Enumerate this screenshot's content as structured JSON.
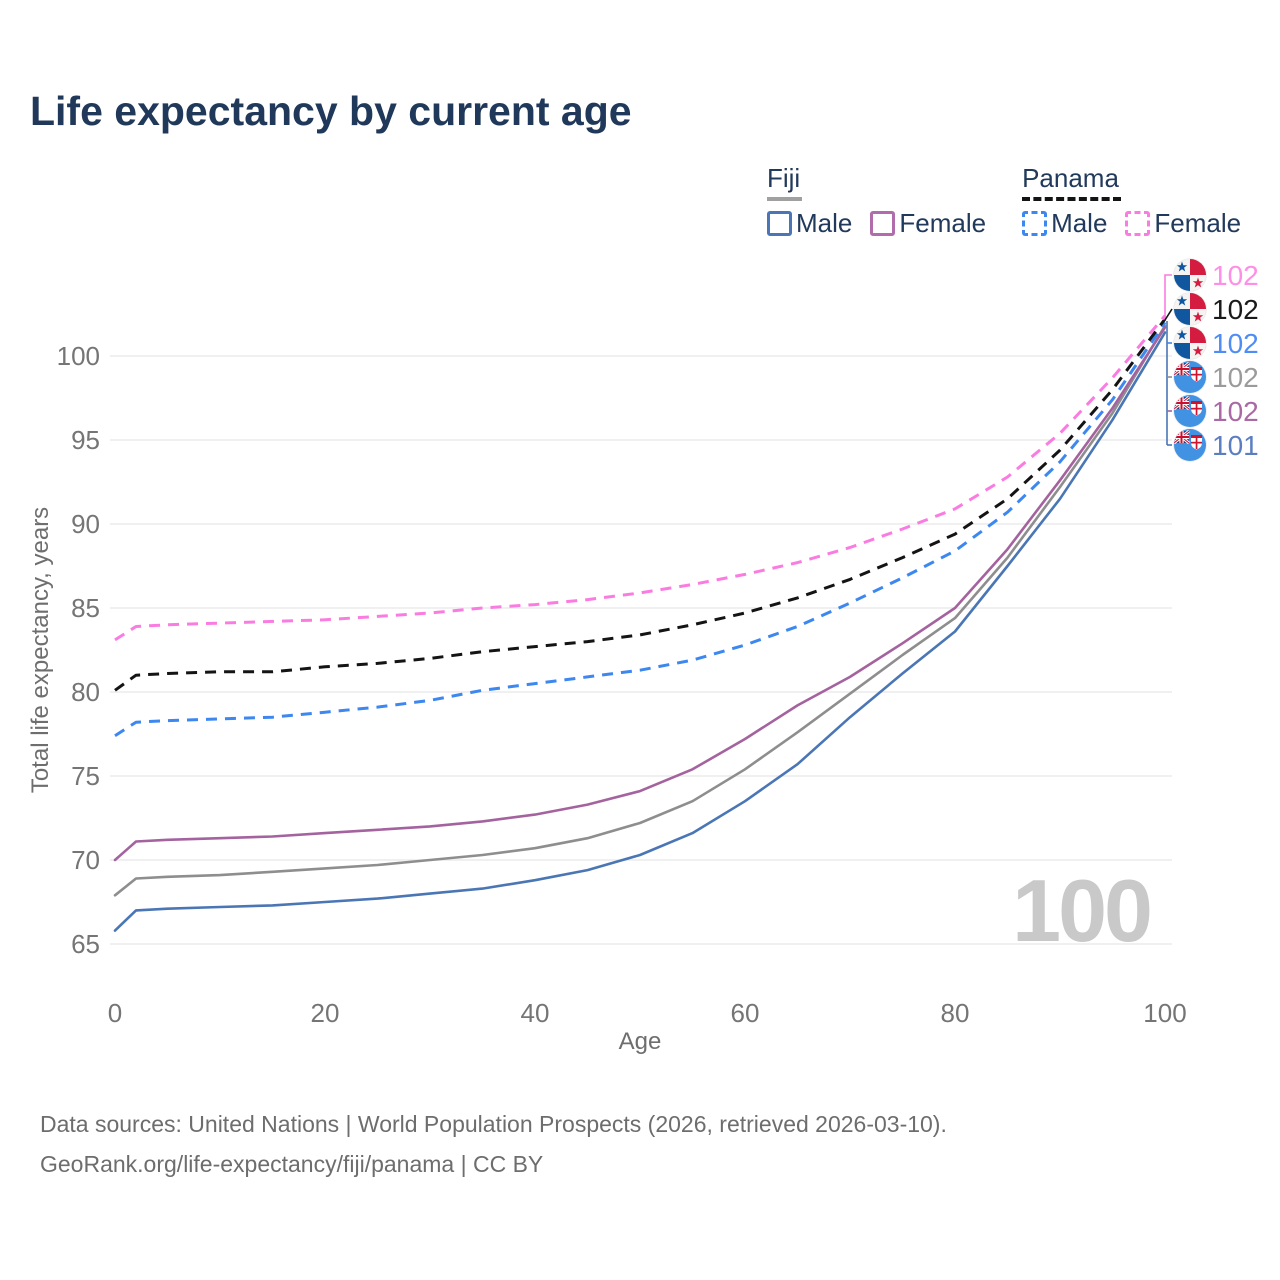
{
  "title": "Life expectancy by current age",
  "watermark": "100",
  "legend": {
    "groups": [
      {
        "name": "Fiji",
        "line_style": "solid",
        "underline_color": "#a0a0a0",
        "items": [
          {
            "label": "Male",
            "color": "#4a76b5"
          },
          {
            "label": "Female",
            "color": "#b06cab"
          }
        ]
      },
      {
        "name": "Panama",
        "line_style": "dashed",
        "underline_color": "#141414",
        "items": [
          {
            "label": "Male",
            "color": "#3c87f0"
          },
          {
            "label": "Female",
            "color": "#fb7ce1"
          }
        ]
      }
    ]
  },
  "footer": {
    "line1": "Data sources: United Nations | World Population Prospects (2026, retrieved 2026-03-10).",
    "line2": "GeoRank.org/life-expectancy/fiji/panama | CC BY"
  },
  "chart_data": {
    "type": "line",
    "title": "Life expectancy by current age",
    "xlabel": "Age",
    "ylabel": "Total life expectancy, years",
    "xlim": [
      0,
      100
    ],
    "ylim": [
      65,
      103
    ],
    "xticks": [
      0,
      20,
      40,
      60,
      80,
      100
    ],
    "yticks": [
      65,
      70,
      75,
      80,
      85,
      90,
      95,
      100
    ],
    "grid": "horizontal",
    "colors": {
      "title_text": "#20395a",
      "tick_text": "#757575",
      "axis_title_text": "#6e6e6e",
      "gridline": "#ebebeb",
      "watermark_text": "#c9c9c9"
    },
    "x": [
      0,
      2,
      5,
      10,
      15,
      20,
      25,
      30,
      35,
      40,
      45,
      50,
      55,
      60,
      65,
      70,
      75,
      80,
      85,
      90,
      95,
      100
    ],
    "series": [
      {
        "id": "fiji-male",
        "name": "Fiji Male",
        "color": "#4a76b5",
        "dash": "solid",
        "values": [
          65.8,
          67.0,
          67.1,
          67.2,
          67.3,
          67.5,
          67.7,
          68.0,
          68.3,
          68.8,
          69.4,
          70.3,
          71.6,
          73.5,
          75.7,
          78.5,
          81.1,
          83.6,
          87.5,
          91.5,
          96.2,
          101.4
        ]
      },
      {
        "id": "fiji-both",
        "name": "Fiji Both sexes",
        "color": "#8e8e8e",
        "dash": "solid",
        "values": [
          67.9,
          68.9,
          69.0,
          69.1,
          69.3,
          69.5,
          69.7,
          70.0,
          70.3,
          70.7,
          71.3,
          72.2,
          73.5,
          75.4,
          77.6,
          79.9,
          82.2,
          84.4,
          88.0,
          92.2,
          96.6,
          101.8
        ]
      },
      {
        "id": "fiji-female",
        "name": "Fiji Female",
        "color": "#a4639f",
        "dash": "solid",
        "values": [
          70.0,
          71.1,
          71.2,
          71.3,
          71.4,
          71.6,
          71.8,
          72.0,
          72.3,
          72.7,
          73.3,
          74.1,
          75.4,
          77.2,
          79.2,
          80.9,
          82.9,
          85.0,
          88.5,
          92.6,
          96.9,
          101.7
        ]
      },
      {
        "id": "panama-male",
        "name": "Panama Male",
        "color": "#3c87f0",
        "dash": "dashed",
        "values": [
          77.4,
          78.2,
          78.3,
          78.4,
          78.5,
          78.8,
          79.1,
          79.5,
          80.1,
          80.5,
          80.9,
          81.3,
          81.9,
          82.8,
          83.9,
          85.3,
          86.8,
          88.4,
          90.7,
          93.7,
          97.4,
          102.0
        ]
      },
      {
        "id": "panama-both",
        "name": "Panama Both sexes",
        "color": "#141414",
        "dash": "dashed",
        "values": [
          80.1,
          81.0,
          81.1,
          81.2,
          81.2,
          81.5,
          81.7,
          82.0,
          82.4,
          82.7,
          83.0,
          83.4,
          84.0,
          84.7,
          85.6,
          86.7,
          88.0,
          89.4,
          91.5,
          94.4,
          98.0,
          102.2
        ]
      },
      {
        "id": "panama-female",
        "name": "Panama Female",
        "color": "#fb7ce1",
        "dash": "dashed",
        "values": [
          83.1,
          83.9,
          84.0,
          84.1,
          84.2,
          84.3,
          84.5,
          84.7,
          85.0,
          85.2,
          85.5,
          85.9,
          86.4,
          87.0,
          87.7,
          88.6,
          89.7,
          90.9,
          92.8,
          95.4,
          98.7,
          102.4
        ]
      }
    ],
    "end_labels": [
      {
        "flag": "panama",
        "series": "panama-female",
        "value": "102",
        "label_color": "#ff8ee6",
        "line_color": "#fb7ce1"
      },
      {
        "flag": "panama",
        "series": "panama-both",
        "value": "102",
        "label_color": "#1a1a1a",
        "line_color": "#141414"
      },
      {
        "flag": "panama",
        "series": "panama-male",
        "value": "102",
        "label_color": "#4d8df5",
        "line_color": "#3c87f0"
      },
      {
        "flag": "fiji",
        "series": "fiji-both",
        "value": "102",
        "label_color": "#9b9b9b",
        "line_color": "#8e8e8e"
      },
      {
        "flag": "fiji",
        "series": "fiji-female",
        "value": "102",
        "label_color": "#a869a4",
        "line_color": "#a4639f"
      },
      {
        "flag": "fiji",
        "series": "fiji-male",
        "value": "101",
        "label_color": "#5b7ec2",
        "line_color": "#4a76b5"
      }
    ]
  }
}
